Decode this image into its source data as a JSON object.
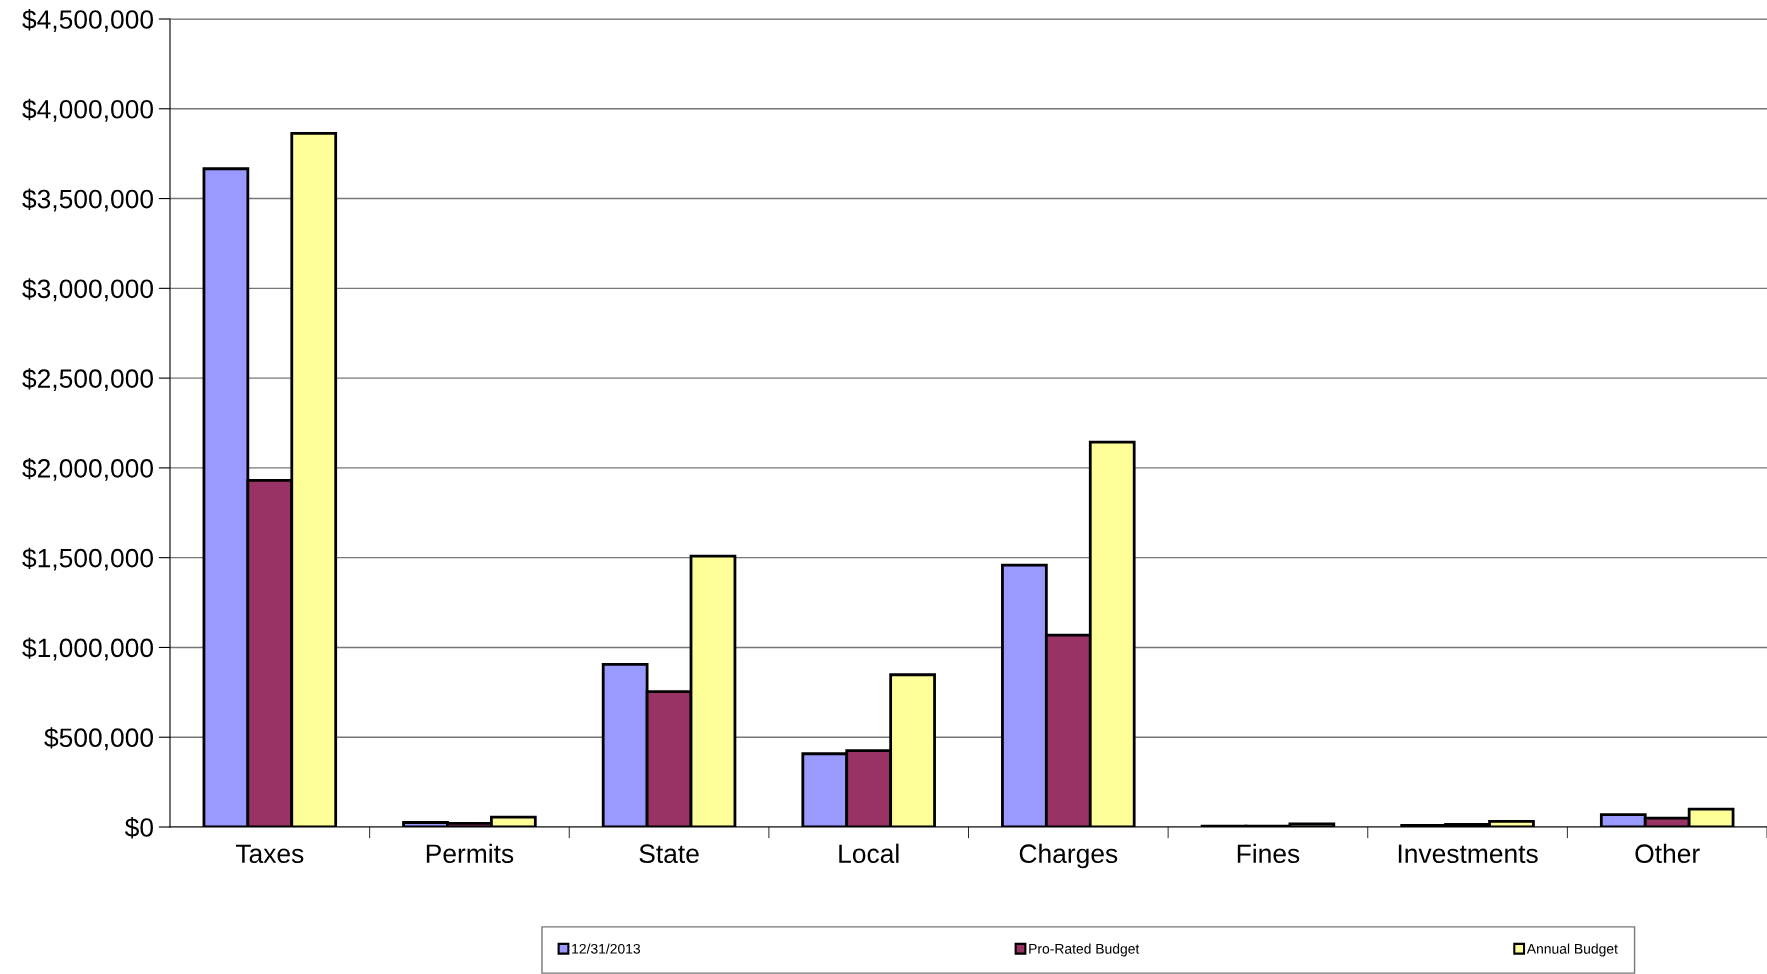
{
  "chart_data": {
    "type": "bar",
    "categories": [
      "Taxes",
      "Permits",
      "State",
      "Local",
      "Charges",
      "Fines",
      "Investments",
      "Other"
    ],
    "series": [
      {
        "name": "12/31/2013",
        "color": "#9999ff",
        "values": [
          3666000,
          25000,
          906000,
          408000,
          1459000,
          5000,
          9000,
          69000
        ]
      },
      {
        "name": "Pro-Rated Budget",
        "color": "#993366",
        "values": [
          1931000,
          20000,
          754000,
          425000,
          1068000,
          5000,
          14000,
          50000
        ]
      },
      {
        "name": "Annual Budget",
        "color": "#ffff99",
        "values": [
          3863000,
          55000,
          1509000,
          848000,
          2143000,
          17000,
          31000,
          100000
        ]
      }
    ],
    "ylim": [
      0,
      4500000
    ],
    "yticks": [
      {
        "value": 0,
        "label": "$0"
      },
      {
        "value": 500000,
        "label": "$500,000"
      },
      {
        "value": 1000000,
        "label": "$1,000,000"
      },
      {
        "value": 1500000,
        "label": "$1,500,000"
      },
      {
        "value": 2000000,
        "label": "$2,000,000"
      },
      {
        "value": 2500000,
        "label": "$2,500,000"
      },
      {
        "value": 3000000,
        "label": "$3,000,000"
      },
      {
        "value": 3500000,
        "label": "$3,500,000"
      },
      {
        "value": 4000000,
        "label": "$4,000,000"
      },
      {
        "value": 4500000,
        "label": "$4,500,000"
      }
    ],
    "grid": "y",
    "legend": "bottom"
  }
}
